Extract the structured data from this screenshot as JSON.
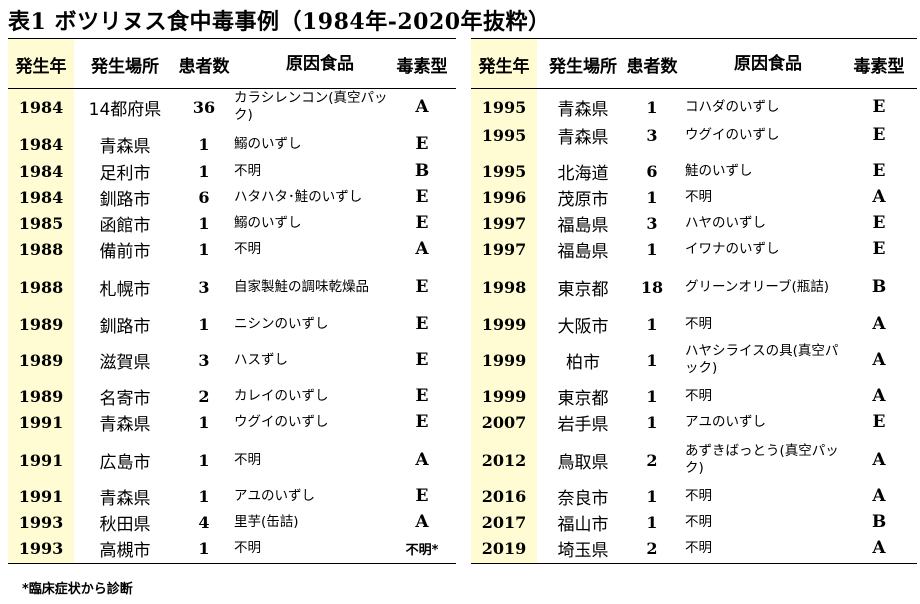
{
  "title": "表1 ボツリヌス食中毒事例（1984年-2020年抜粋）",
  "headers": {
    "year": "発生年",
    "place": "発生場所",
    "patients": "患者数",
    "food": "原因食品",
    "toxin_type": "毒素型"
  },
  "left_rows": [
    {
      "year": "1984",
      "place": "14都府県",
      "patients": "36",
      "food": "カラシレンコン(真空パック)",
      "type": "A"
    },
    {
      "year": "1984",
      "place": "青森県",
      "patients": "1",
      "food": "鰯のいずし",
      "type": "E"
    },
    {
      "year": "1984",
      "place": "足利市",
      "patients": "1",
      "food": "不明",
      "type": "B"
    },
    {
      "year": "1984",
      "place": "釧路市",
      "patients": "6",
      "food": "ハタハタ･鮭のいずし",
      "type": "E"
    },
    {
      "year": "1985",
      "place": "函館市",
      "patients": "1",
      "food": "鰯のいずし",
      "type": "E"
    },
    {
      "year": "1988",
      "place": "備前市",
      "patients": "1",
      "food": "不明",
      "type": "A"
    },
    {
      "year": "1988",
      "place": "札幌市",
      "patients": "3",
      "food": "自家製鮭の調味乾燥品",
      "type": "E"
    },
    {
      "year": "1989",
      "place": "釧路市",
      "patients": "1",
      "food": "ニシンのいずし",
      "type": "E"
    },
    {
      "year": "1989",
      "place": "滋賀県",
      "patients": "3",
      "food": "ハスずし",
      "type": "E"
    },
    {
      "year": "1989",
      "place": "名寄市",
      "patients": "2",
      "food": "カレイのいずし",
      "type": "E"
    },
    {
      "year": "1991",
      "place": "青森県",
      "patients": "1",
      "food": "ウグイのいずし",
      "type": "E"
    },
    {
      "year": "1991",
      "place": "広島市",
      "patients": "1",
      "food": "不明",
      "type": "A"
    },
    {
      "year": "1991",
      "place": "青森県",
      "patients": "1",
      "food": "アユのいずし",
      "type": "E"
    },
    {
      "year": "1993",
      "place": "秋田県",
      "patients": "4",
      "food": "里芋(缶詰)",
      "type": "A"
    },
    {
      "year": "1993",
      "place": "高槻市",
      "patients": "1",
      "food": "不明",
      "type": "不明*"
    }
  ],
  "right_rows": [
    {
      "year": "1995",
      "place": "青森県",
      "patients": "1",
      "food": "コハダのいずし",
      "type": "E"
    },
    {
      "year": "1995",
      "place": "青森県",
      "patients": "3",
      "food": "ウグイのいずし",
      "type": "E"
    },
    {
      "year": "1995",
      "place": "北海道",
      "patients": "6",
      "food": "鮭のいずし",
      "type": "E"
    },
    {
      "year": "1996",
      "place": "茂原市",
      "patients": "1",
      "food": "不明",
      "type": "A"
    },
    {
      "year": "1997",
      "place": "福島県",
      "patients": "3",
      "food": "ハヤのいずし",
      "type": "E"
    },
    {
      "year": "1997",
      "place": "福島県",
      "patients": "1",
      "food": "イワナのいずし",
      "type": "E"
    },
    {
      "year": "1998",
      "place": "東京都",
      "patients": "18",
      "food": "グリーンオリーブ(瓶詰)",
      "type": "B"
    },
    {
      "year": "1999",
      "place": "大阪市",
      "patients": "1",
      "food": "不明",
      "type": "A"
    },
    {
      "year": "1999",
      "place": "柏市",
      "patients": "1",
      "food": "ハヤシライスの具(真空パック)",
      "type": "A"
    },
    {
      "year": "1999",
      "place": "東京都",
      "patients": "1",
      "food": "不明",
      "type": "A"
    },
    {
      "year": "2007",
      "place": "岩手県",
      "patients": "1",
      "food": "アユのいずし",
      "type": "E"
    },
    {
      "year": "2012",
      "place": "鳥取県",
      "patients": "2",
      "food": "あずきばっとう(真空パック)",
      "type": "A"
    },
    {
      "year": "2016",
      "place": "奈良市",
      "patients": "1",
      "food": "不明",
      "type": "A"
    },
    {
      "year": "2017",
      "place": "福山市",
      "patients": "1",
      "food": "不明",
      "type": "B"
    },
    {
      "year": "2019",
      "place": "埼玉県",
      "patients": "2",
      "food": "不明",
      "type": "A"
    }
  ],
  "footnote": "*臨床症状から診断",
  "colors": {
    "year_band": "#fffbd2",
    "rule": "#000000"
  }
}
